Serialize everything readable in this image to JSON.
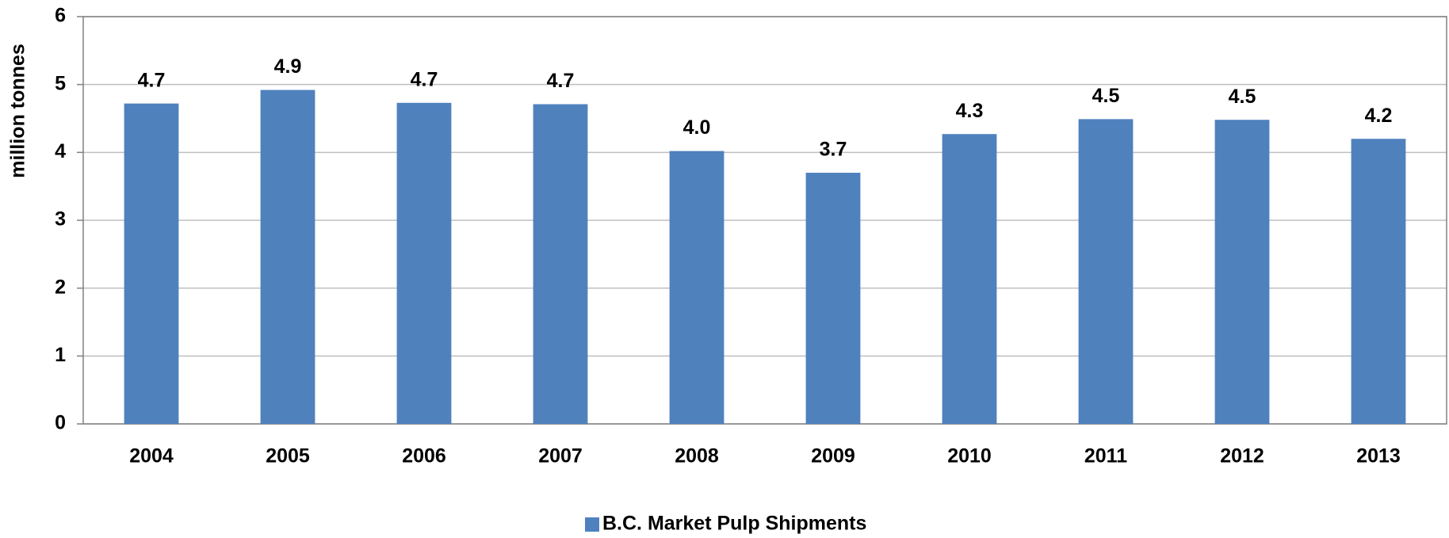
{
  "chart_data": {
    "type": "bar",
    "y_label": "million tonnes",
    "categories": [
      "2004",
      "2005",
      "2006",
      "2007",
      "2008",
      "2009",
      "2010",
      "2011",
      "2012",
      "2013"
    ],
    "series": [
      {
        "name": "B.C. Market Pulp Shipments",
        "color": "#4f81bd",
        "values": [
          4.72,
          4.92,
          4.73,
          4.71,
          4.02,
          3.7,
          4.27,
          4.49,
          4.48,
          4.2
        ],
        "value_labels": [
          "4.7",
          "4.9",
          "4.7",
          "4.7",
          "4.0",
          "3.7",
          "4.3",
          "4.5",
          "4.5",
          "4.2"
        ]
      }
    ],
    "ylim": [
      0,
      6
    ],
    "yticks": [
      0,
      1,
      2,
      3,
      4,
      5,
      6
    ],
    "grid": true,
    "legend": "bottom"
  }
}
